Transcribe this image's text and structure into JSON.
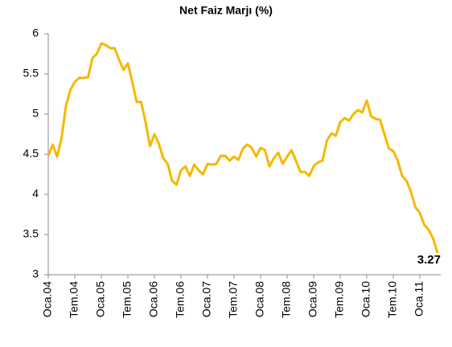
{
  "chart_data": {
    "type": "line",
    "title": "Net Faiz Marjı (%)",
    "categories": [
      "Oca.04",
      null,
      null,
      null,
      null,
      null,
      "Tem.04",
      null,
      null,
      null,
      null,
      null,
      "Oca.05",
      null,
      null,
      null,
      null,
      null,
      "Tem.05",
      null,
      null,
      null,
      null,
      null,
      "Oca.06",
      null,
      null,
      null,
      null,
      null,
      "Tem.06",
      null,
      null,
      null,
      null,
      null,
      "Oca.07",
      null,
      null,
      null,
      null,
      null,
      "Tem.07",
      null,
      null,
      null,
      null,
      null,
      "Oca.08",
      null,
      null,
      null,
      null,
      null,
      "Tem.08",
      null,
      null,
      null,
      null,
      null,
      "Oca.09",
      null,
      null,
      null,
      null,
      null,
      "Tem.09",
      null,
      null,
      null,
      null,
      null,
      "Oca.10",
      null,
      null,
      null,
      null,
      null,
      "Tem.10",
      null,
      null,
      null,
      null,
      null,
      "Oca.11",
      null,
      null,
      null,
      null
    ],
    "series": [
      {
        "name": "Net Faiz Marjı",
        "color": "#f5b800",
        "values": [
          4.48,
          4.62,
          4.47,
          4.7,
          5.1,
          5.3,
          5.4,
          5.45,
          5.45,
          5.46,
          5.7,
          5.75,
          5.88,
          5.86,
          5.82,
          5.82,
          5.68,
          5.55,
          5.63,
          5.4,
          5.15,
          5.15,
          4.9,
          4.6,
          4.75,
          4.63,
          4.45,
          4.38,
          4.17,
          4.12,
          4.3,
          4.35,
          4.23,
          4.37,
          4.3,
          4.25,
          4.38,
          4.37,
          4.38,
          4.48,
          4.48,
          4.42,
          4.47,
          4.43,
          4.57,
          4.62,
          4.58,
          4.47,
          4.58,
          4.55,
          4.35,
          4.45,
          4.52,
          4.38,
          4.47,
          4.55,
          4.42,
          4.28,
          4.28,
          4.23,
          4.35,
          4.4,
          4.42,
          4.67,
          4.76,
          4.73,
          4.9,
          4.95,
          4.92,
          5.0,
          5.05,
          5.02,
          5.17,
          4.97,
          4.94,
          4.93,
          4.75,
          4.57,
          4.54,
          4.42,
          4.23,
          4.17,
          4.03,
          3.84,
          3.77,
          3.62,
          3.56,
          3.45,
          3.27
        ]
      }
    ],
    "ylim": [
      3,
      6
    ],
    "yticks": [
      3,
      {
        "value": 3.5,
        "label": "3.5"
      },
      4,
      {
        "value": 4.5,
        "label": "4.5"
      },
      5,
      {
        "value": 5.5,
        "label": "5.5"
      },
      6
    ]
  }
}
